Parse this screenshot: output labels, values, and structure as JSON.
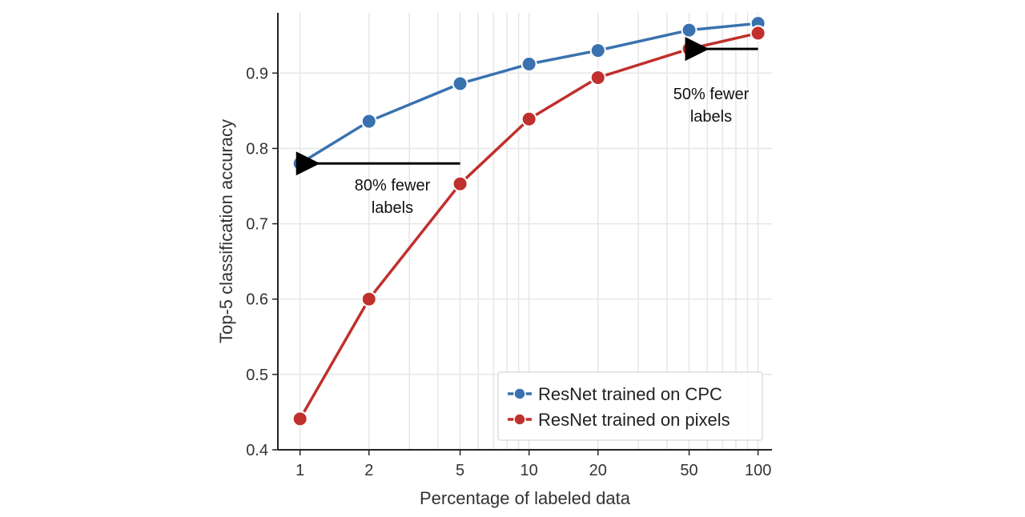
{
  "chart_data": {
    "type": "line",
    "title": "",
    "xlabel": "Percentage of labeled data",
    "ylabel": "Top-5 classification accuracy",
    "x_scale": "log",
    "x": [
      1,
      2,
      5,
      10,
      20,
      50,
      100
    ],
    "x_tick_labels": [
      "1",
      "2",
      "5",
      "10",
      "20",
      "50",
      "100"
    ],
    "y_ticks": [
      0.4,
      0.5,
      0.6,
      0.7,
      0.8,
      0.9
    ],
    "y_tick_labels": [
      "0.4",
      "0.5",
      "0.6",
      "0.7",
      "0.8",
      "0.9"
    ],
    "xlim": [
      0.8,
      115
    ],
    "ylim": [
      0.4,
      0.98
    ],
    "grid": true,
    "legend_position": "bottom-right",
    "series": [
      {
        "name": "ResNet trained on CPC",
        "color": "#3a72b0",
        "values": [
          0.78,
          0.836,
          0.886,
          0.912,
          0.93,
          0.957,
          0.966
        ]
      },
      {
        "name": "ResNet trained on pixels",
        "color": "#c0302c",
        "values": [
          0.441,
          0.6,
          0.753,
          0.839,
          0.894,
          0.932,
          0.953
        ]
      }
    ],
    "annotations": [
      {
        "lines": [
          "80% fewer",
          "labels"
        ],
        "arrow_from": [
          5,
          0.78
        ],
        "arrow_to": [
          1,
          0.78
        ]
      },
      {
        "lines": [
          "50% fewer",
          "labels"
        ],
        "arrow_from": [
          100,
          0.932
        ],
        "arrow_to": [
          50,
          0.932
        ]
      }
    ]
  }
}
